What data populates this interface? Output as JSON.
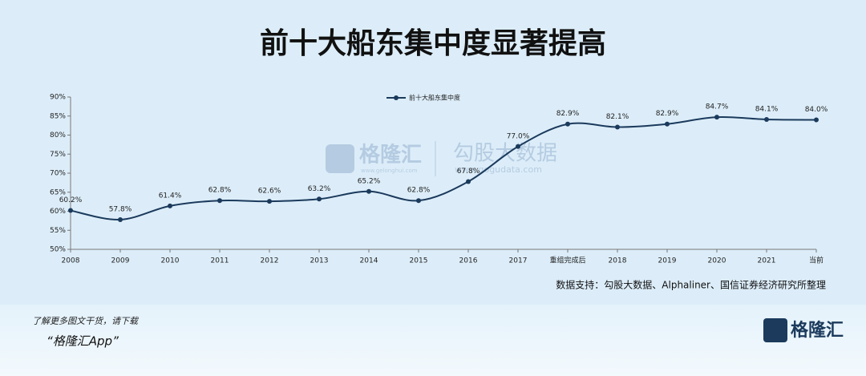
{
  "chart_data": {
    "type": "line",
    "title": "前十大船东集中度显著提高",
    "categories": [
      "2008",
      "2009",
      "2010",
      "2011",
      "2012",
      "2013",
      "2014",
      "2015",
      "2016",
      "2017",
      "重组完成后",
      "2018",
      "2019",
      "2020",
      "2021",
      "当前"
    ],
    "series": [
      {
        "name": "前十大船东集中度",
        "color": "#1b3a5c",
        "values": [
          60.2,
          57.8,
          61.4,
          62.8,
          62.6,
          63.2,
          65.2,
          62.8,
          67.8,
          77.0,
          82.9,
          82.1,
          82.9,
          84.7,
          84.1,
          84.0
        ],
        "value_labels": [
          "60.2%",
          "57.8%",
          "61.4%",
          "62.8%",
          "62.6%",
          "63.2%",
          "65.2%",
          "62.8%",
          "67.8%",
          "77.0%",
          "82.9%",
          "82.1%",
          "82.9%",
          "84.7%",
          "84.1%",
          "84.0%"
        ]
      }
    ],
    "ylim": [
      50,
      90
    ],
    "yticks": [
      {
        "value": 50,
        "label": "50%"
      },
      {
        "value": 55,
        "label": "55%"
      },
      {
        "value": 60,
        "label": "60%"
      },
      {
        "value": 65,
        "label": "65%"
      },
      {
        "value": 70,
        "label": "70%"
      },
      {
        "value": 75,
        "label": "75%"
      },
      {
        "value": 80,
        "label": "80%"
      },
      {
        "value": 85,
        "label": "85%"
      },
      {
        "value": 90,
        "label": "90%"
      }
    ],
    "grid": false,
    "legend": "top",
    "source": "数据支持：勾股大数据、Alphaliner、国信证券经济研究所整理"
  },
  "watermark": {
    "brand": "格隆汇",
    "site": "www.gelonghui.com",
    "brand2": "勾股大数据",
    "site2": "www.gogudata.com"
  },
  "footer": {
    "prompt": "了解更多图文干货，请下载",
    "app": "“格隆汇App”",
    "logo": "格隆汇"
  }
}
